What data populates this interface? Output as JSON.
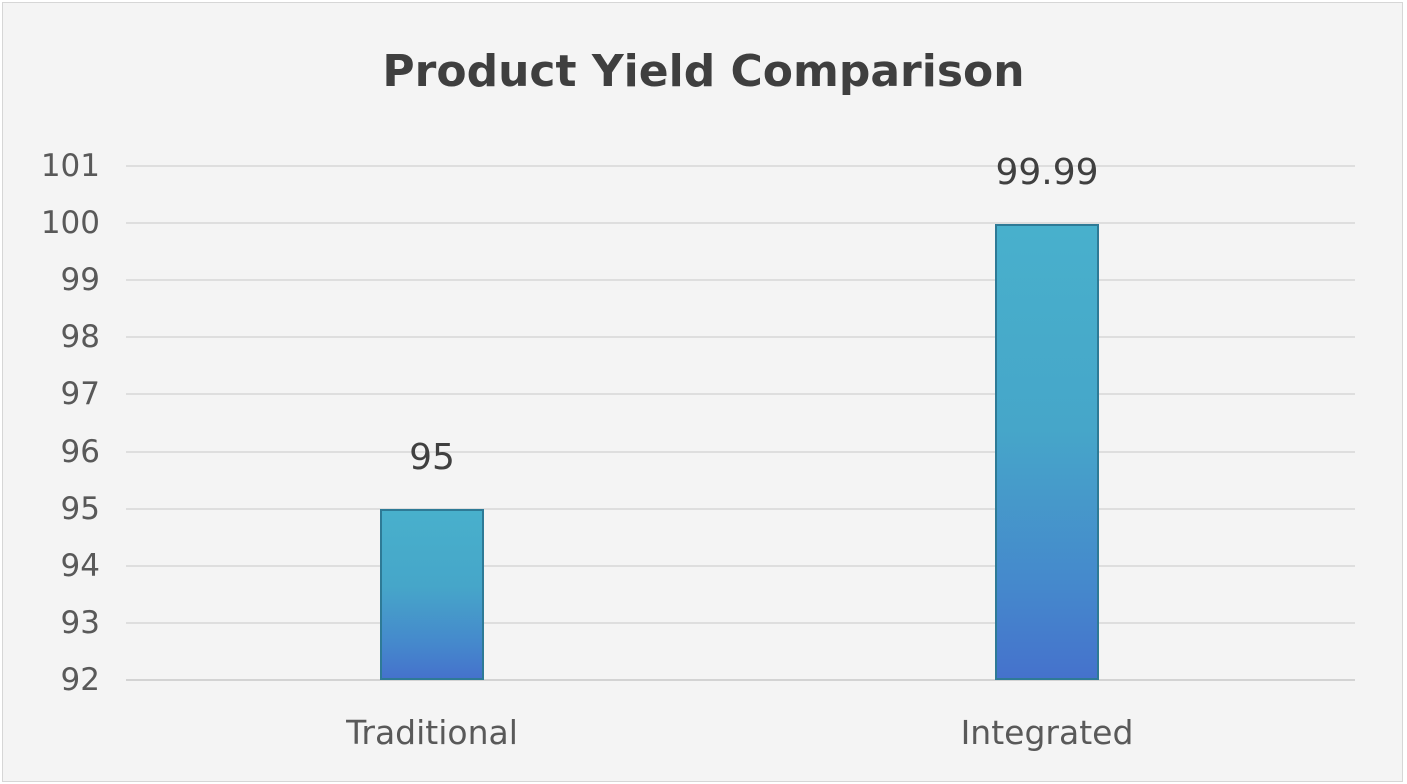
{
  "chart_data": {
    "type": "bar",
    "title": "Product Yield Comparison",
    "categories": [
      "Traditional",
      "Integrated"
    ],
    "values": [
      95,
      99.99
    ],
    "data_labels": [
      "95",
      "99.99"
    ],
    "xlabel": "",
    "ylabel": "",
    "ylim": [
      92,
      101
    ],
    "yticks": [
      "101",
      "100",
      "99",
      "98",
      "97",
      "96",
      "95",
      "94",
      "93",
      "92"
    ],
    "grid": true,
    "legend": null,
    "colors": {
      "bar_top": "#48b0cc",
      "bar_bottom": "#4572cc",
      "bar_border": "#2e7a96"
    }
  },
  "title": "Product Yield Comparison"
}
